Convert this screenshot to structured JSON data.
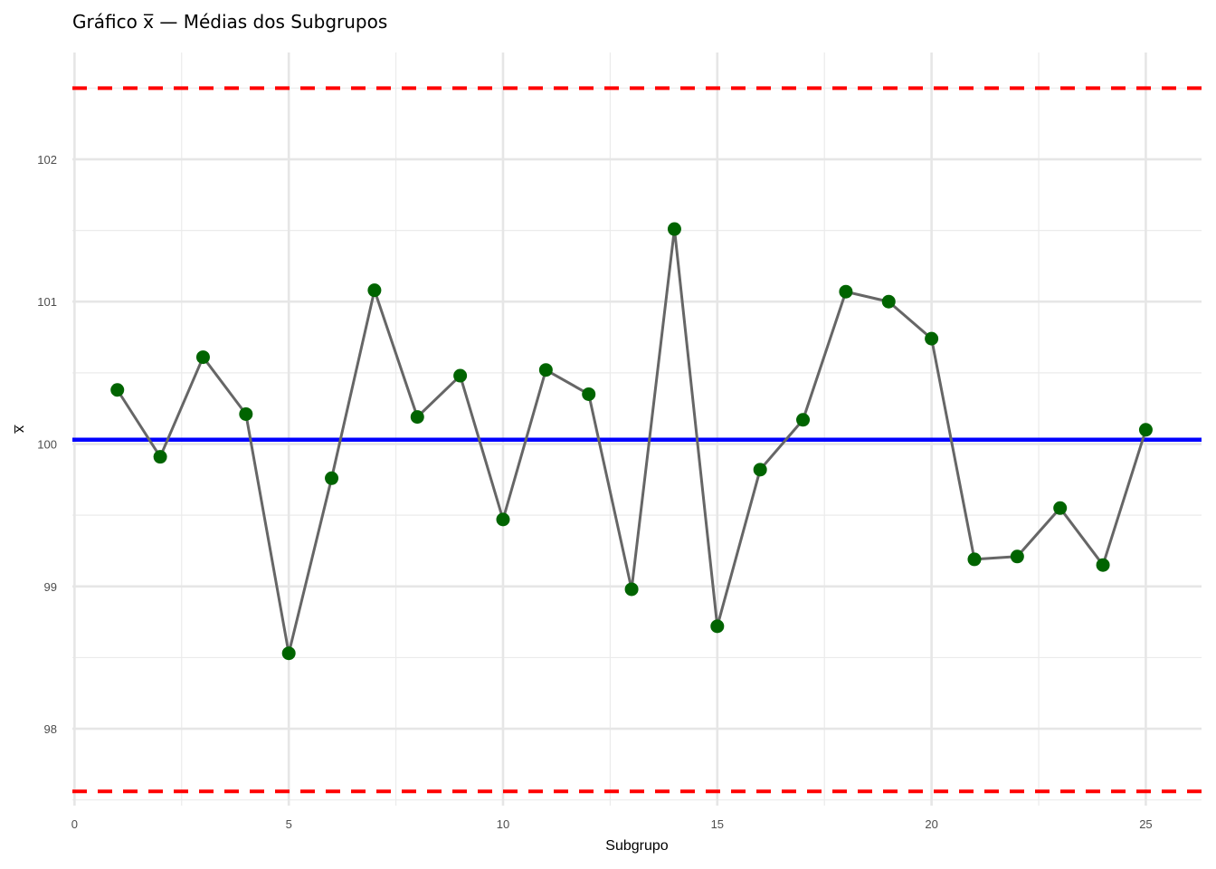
{
  "chart_data": {
    "type": "line",
    "title": "Gráfico x̅ — Médias dos Subgrupos",
    "xlabel": "Subgrupo",
    "ylabel": "x̅",
    "xlim": [
      -0.05,
      26.3
    ],
    "ylim": [
      97.46,
      102.75
    ],
    "x_ticks": [
      "0",
      "5",
      "10",
      "15",
      "20",
      "25"
    ],
    "y_ticks": [
      "98",
      "99",
      "100",
      "101",
      "102"
    ],
    "grid": true,
    "series": [
      {
        "x": [
          1,
          2,
          3,
          4,
          5,
          6,
          7,
          8,
          9,
          10,
          11,
          12,
          13,
          14,
          15,
          16,
          17,
          18,
          19,
          20,
          21,
          22,
          23,
          24,
          25
        ],
        "y": [
          100.38,
          99.91,
          100.61,
          100.21,
          98.53,
          99.76,
          101.08,
          100.19,
          100.48,
          99.47,
          100.52,
          100.35,
          98.98,
          101.51,
          98.72,
          99.82,
          100.17,
          101.07,
          101.0,
          100.74,
          99.19,
          99.21,
          99.55,
          99.15,
          100.1
        ],
        "line_color": "#666666",
        "marker_color": "#006400"
      }
    ],
    "reference_lines": [
      {
        "y": 100.03,
        "color": "#0000ff",
        "style": "solid"
      },
      {
        "y": 102.5,
        "color": "#ff0000",
        "style": "dashed"
      },
      {
        "y": 97.56,
        "color": "#ff0000",
        "style": "dashed"
      }
    ]
  }
}
